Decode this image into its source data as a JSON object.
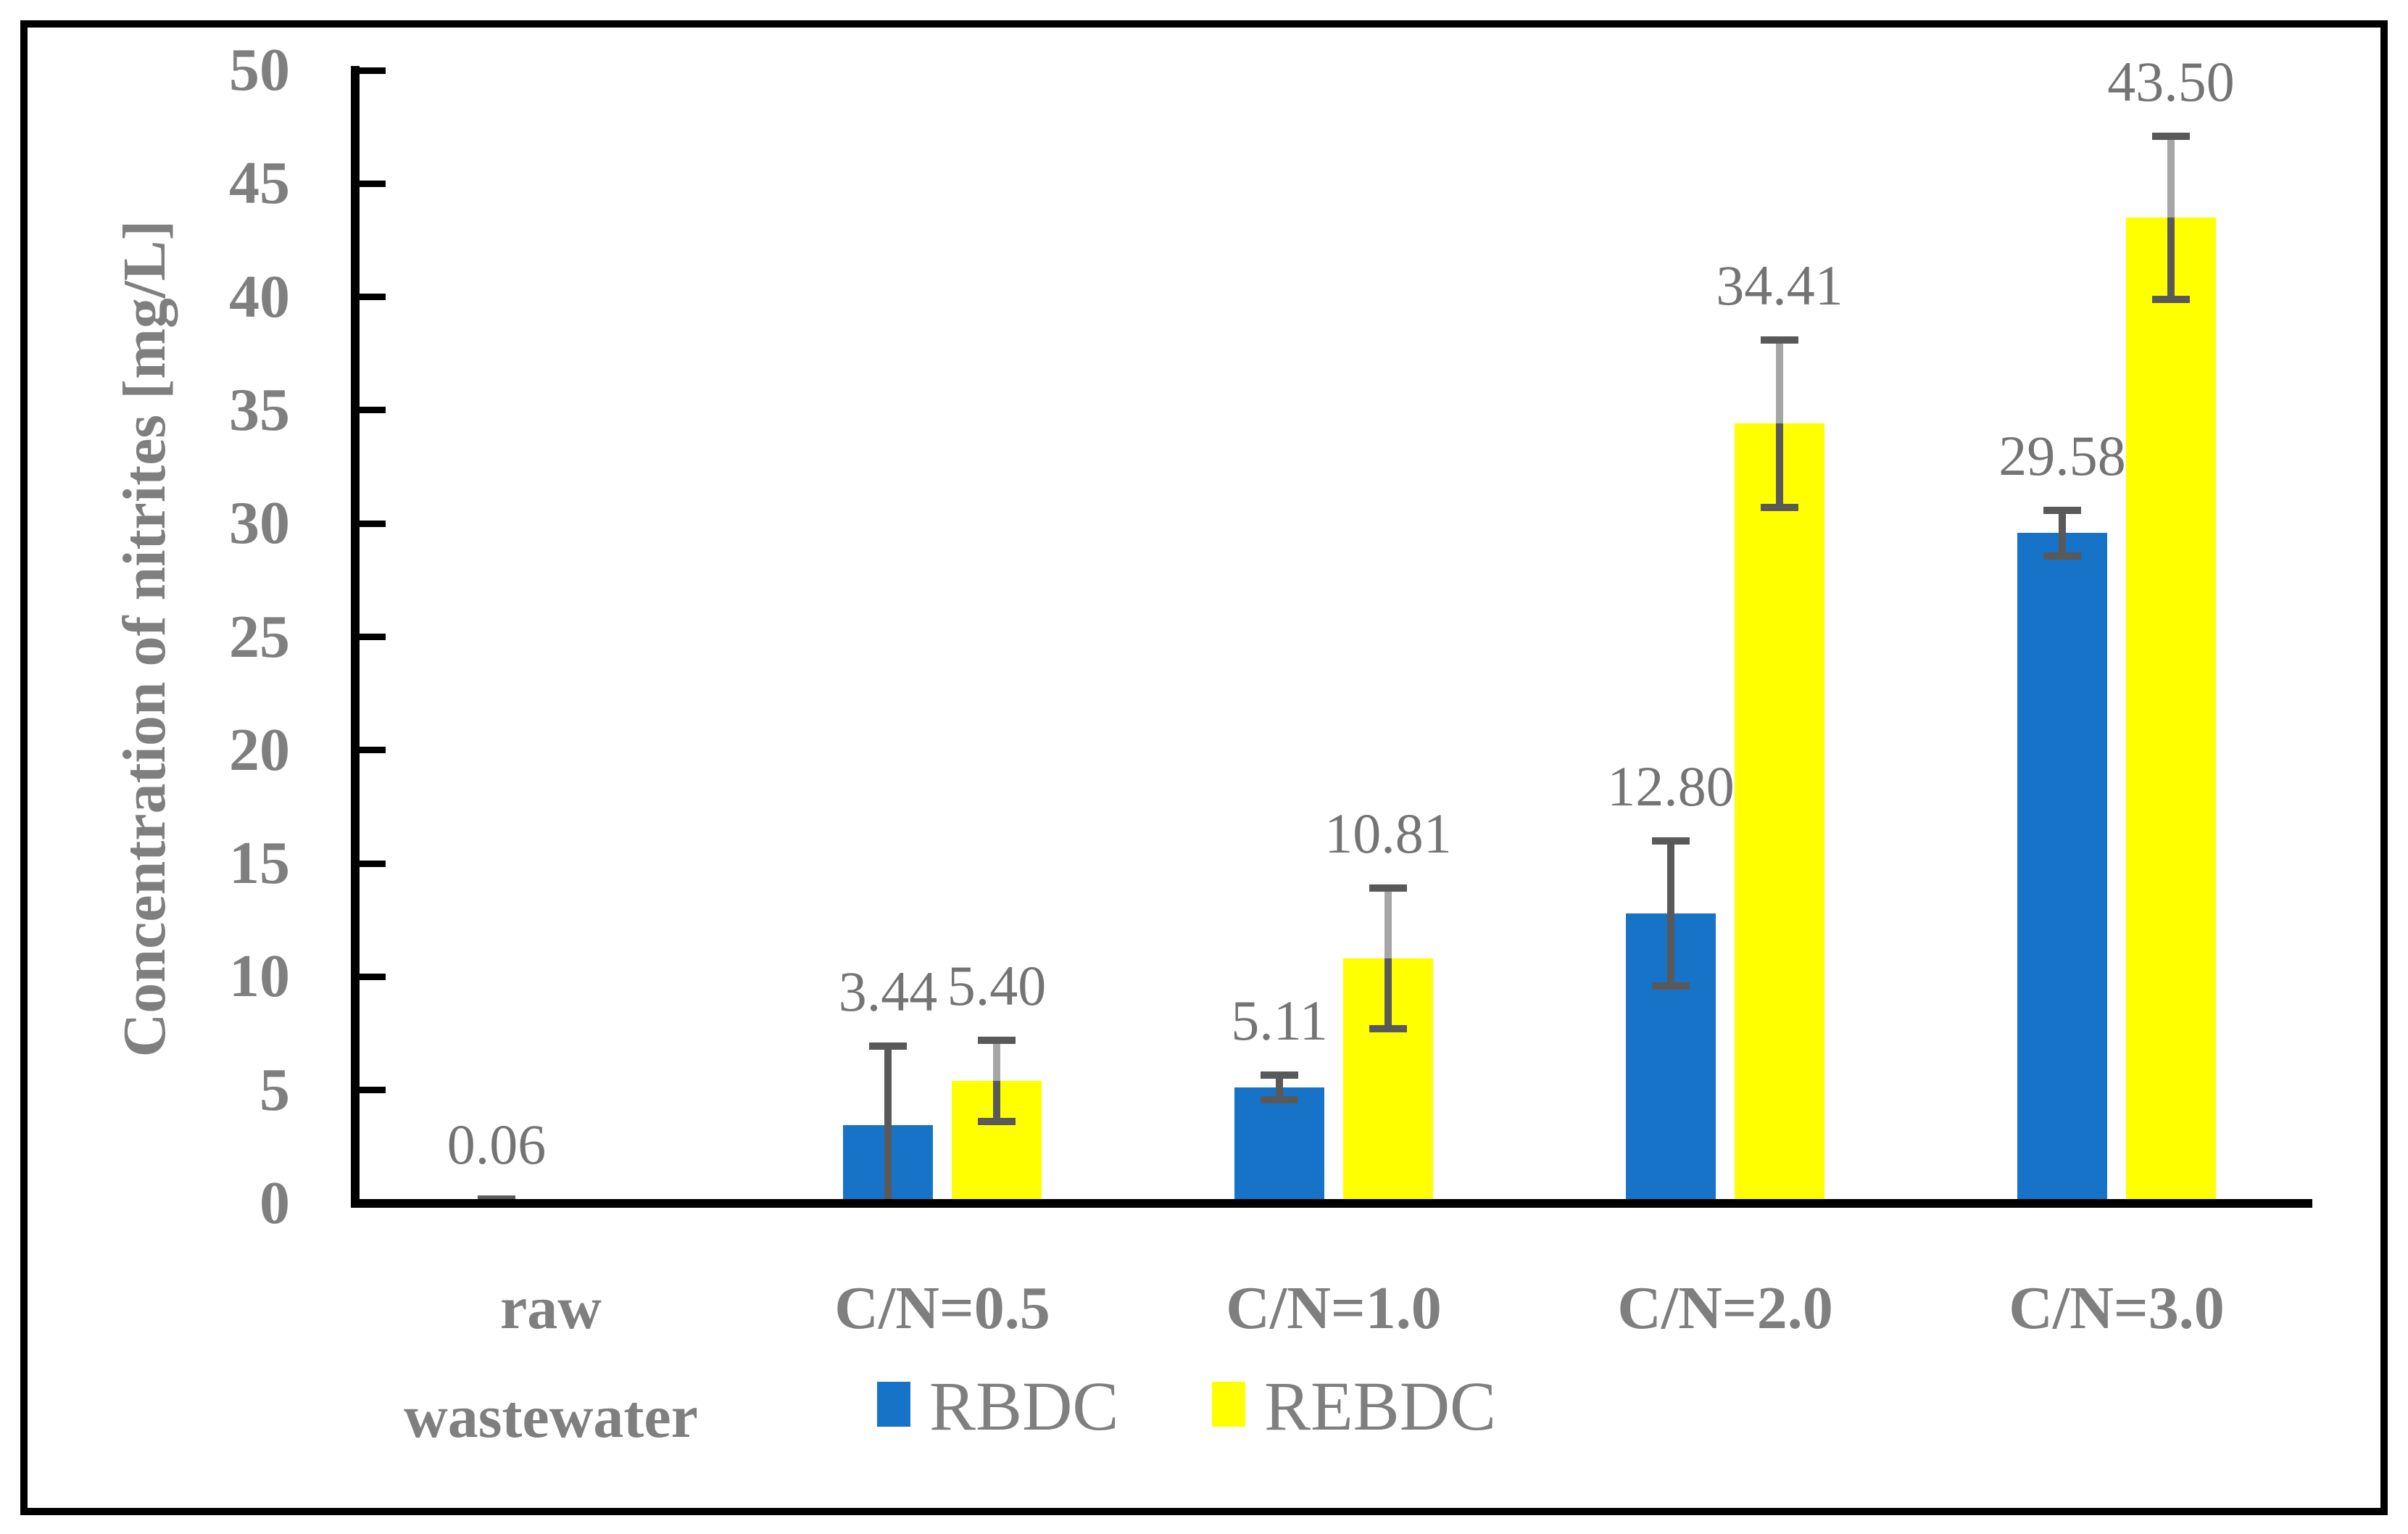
{
  "figure": {
    "background": "#ffffff",
    "border_color": "#000000"
  },
  "chart_data": {
    "type": "bar",
    "title": "",
    "xlabel": "",
    "ylabel": "Concentration of nitrites [mg/L]",
    "ylim": [
      0,
      50
    ],
    "ytick_step": 5,
    "grid": false,
    "legend_position": "bottom",
    "categories": [
      "raw wastewater",
      "C/N=0.5",
      "C/N=1.0",
      "C/N=2.0",
      "C/N=3.0"
    ],
    "category_label_lines": [
      [
        "raw",
        "wastewater"
      ],
      [
        "C/N=0.5"
      ],
      [
        "C/N=1.0"
      ],
      [
        "C/N=2.0"
      ],
      [
        "C/N=3.0"
      ]
    ],
    "series": [
      {
        "name": "RBDC",
        "color": "#1773C8",
        "values": [
          0.06,
          3.44,
          5.11,
          12.8,
          29.58
        ],
        "errors": [
          0.12,
          3.5,
          0.55,
          3.2,
          1.0
        ],
        "labels": [
          "0.06",
          "3.44",
          "5.11",
          "12.80",
          "29.58"
        ]
      },
      {
        "name": "REBDC",
        "color": "#FFFF00",
        "values": [
          null,
          5.4,
          10.81,
          34.41,
          43.5
        ],
        "errors": [
          null,
          1.8,
          3.1,
          3.7,
          3.6
        ],
        "labels": [
          null,
          "5.40",
          "10.81",
          "34.41",
          "43.50"
        ]
      }
    ],
    "error_bar_color": "#595959",
    "error_bar_light_color": "#A6A6A6",
    "axis_color": "#000000",
    "text_color": "#7F7F7F",
    "data_label_color": "#747474"
  }
}
